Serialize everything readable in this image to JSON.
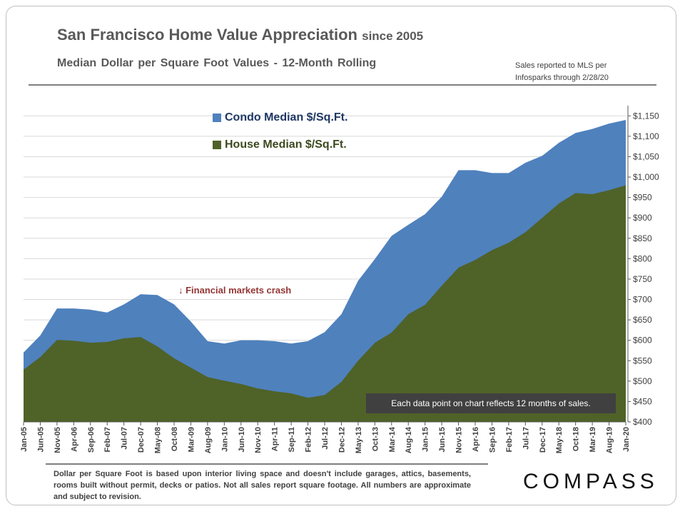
{
  "header": {
    "title": "San Francisco Home Value Appreciation",
    "title_suffix": "since 2005",
    "subtitle": "Median Dollar per Square Foot Values - 12-Month Rolling",
    "source_line1": "Sales reported to MLS per",
    "source_line2": "Infosparks through 2/28/20"
  },
  "annotation": "↓ Financial markets crash",
  "note": "Each data point on chart reflects 12 months of sales.",
  "footnote": "Dollar per Square Foot is based upon interior living space and doesn't include garages, attics, basements, rooms built without permit, decks or patios. Not all sales report square footage. All numbers are approximate and subject to revision.",
  "logo": "COMPASS",
  "chart_data": {
    "type": "area",
    "title": "San Francisco Home Value Appreciation since 2005",
    "categories": [
      "Jan-05",
      "Jun-05",
      "Nov-05",
      "Apr-06",
      "Sep-06",
      "Feb-07",
      "Jul-07",
      "Dec-07",
      "May-08",
      "Oct-08",
      "Mar-09",
      "Aug-09",
      "Jan-10",
      "Jun-10",
      "Nov-10",
      "Apr-11",
      "Sep-11",
      "Feb-12",
      "Jul-12",
      "Dec-12",
      "May-13",
      "Oct-13",
      "Mar-14",
      "Aug-14",
      "Jan-15",
      "Jun-15",
      "Nov-15",
      "Apr-16",
      "Sep-16",
      "Feb-17",
      "Jul-17",
      "Dec-17",
      "May-18",
      "Oct-18",
      "Mar-19",
      "Aug-19",
      "Jan-20"
    ],
    "series": [
      {
        "name": "Condo Median $/Sq.Ft.",
        "color": "#4f81bd",
        "values": [
          570,
          612,
          678,
          678,
          675,
          668,
          688,
          713,
          711,
          688,
          646,
          598,
          592,
          600,
          600,
          598,
          592,
          598,
          620,
          664,
          746,
          799,
          856,
          883,
          909,
          952,
          1017,
          1017,
          1010,
          1010,
          1035,
          1052,
          1084,
          1108,
          1118,
          1131,
          1140
        ]
      },
      {
        "name": "House Median $/Sq.Ft.",
        "color": "#4f6228",
        "values": [
          528,
          559,
          601,
          599,
          594,
          596,
          605,
          608,
          585,
          556,
          533,
          510,
          501,
          493,
          482,
          475,
          470,
          459,
          466,
          498,
          550,
          594,
          619,
          664,
          687,
          734,
          778,
          797,
          821,
          839,
          865,
          900,
          935,
          961,
          958,
          968,
          980
        ]
      }
    ],
    "ylim": [
      400,
      1175
    ],
    "yticks": [
      "$400",
      "$450",
      "$500",
      "$550",
      "$600",
      "$650",
      "$700",
      "$750",
      "$800",
      "$850",
      "$900",
      "$950",
      "$1,000",
      "$1,050",
      "$1,100",
      "$1,150"
    ],
    "ytick_values": [
      400,
      450,
      500,
      550,
      600,
      650,
      700,
      750,
      800,
      850,
      900,
      950,
      1000,
      1050,
      1100,
      1150
    ],
    "grid": true,
    "legend": "top-center",
    "yaxis_side": "right"
  }
}
